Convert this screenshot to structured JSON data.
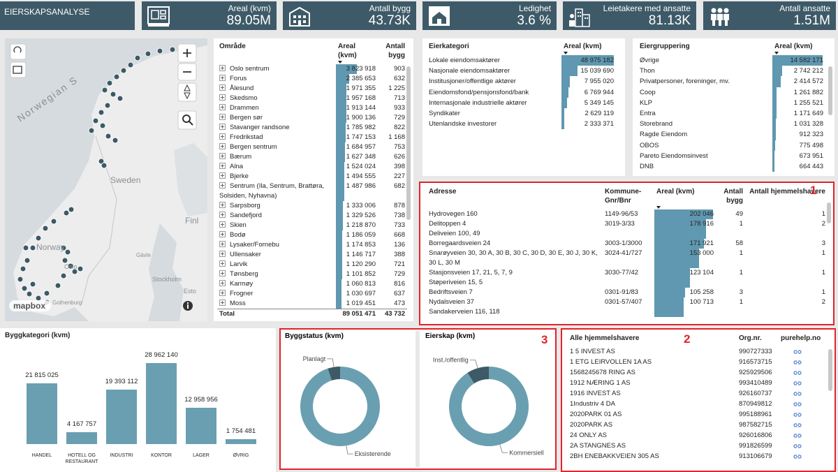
{
  "header": {
    "title": "EIERSKAPSANALYSE",
    "kpis": [
      {
        "label": "Areal (kvm)",
        "value": "89.05M"
      },
      {
        "label": "Antall bygg",
        "value": "43.73K"
      },
      {
        "label": "Ledighet",
        "value": "3.6 %"
      },
      {
        "label": "Leietakere med ansatte",
        "value": "81.13K"
      },
      {
        "label": "Antall ansatte",
        "value": "1.51M"
      }
    ]
  },
  "map": {
    "labels": [
      "Norwegian S",
      "Sweden",
      "Finl",
      "Norway",
      "Oslo",
      "Gävle",
      "Stockholm",
      "Esto",
      "Gothenburg"
    ],
    "attribution": "mapbox"
  },
  "region_table": {
    "headers": [
      "Område",
      "Areal (kvm)",
      "Antall bygg"
    ],
    "rows": [
      [
        "Oslo sentrum",
        "3 823 918",
        "903"
      ],
      [
        "Forus",
        "2 385 653",
        "632"
      ],
      [
        "Ålesund",
        "1 971 355",
        "1 225"
      ],
      [
        "Skedsmo",
        "1 957 168",
        "713"
      ],
      [
        "Drammen",
        "1 913 144",
        "933"
      ],
      [
        "Bergen sør",
        "1 900 136",
        "729"
      ],
      [
        "Stavanger randsone",
        "1 785 982",
        "822"
      ],
      [
        "Fredrikstad",
        "1 747 153",
        "1 168"
      ],
      [
        "Bergen sentrum",
        "1 684 957",
        "753"
      ],
      [
        "Bærum",
        "1 627 348",
        "626"
      ],
      [
        "Alna",
        "1 524 024",
        "398"
      ],
      [
        "Bjerke",
        "1 494 555",
        "227"
      ],
      [
        "Sentrum (Ila, Sentrum, Brattøra, Solsiden, Nyhavna)",
        "1 487 986",
        "682"
      ],
      [
        "Sarpsborg",
        "1 333 006",
        "878"
      ],
      [
        "Sandefjord",
        "1 329 526",
        "738"
      ],
      [
        "Skien",
        "1 218 870",
        "733"
      ],
      [
        "Bodø",
        "1 186 059",
        "668"
      ],
      [
        "Lysaker/Fornebu",
        "1 174 853",
        "136"
      ],
      [
        "Ullensaker",
        "1 146 717",
        "388"
      ],
      [
        "Larvik",
        "1 120 290",
        "721"
      ],
      [
        "Tønsberg",
        "1 101 852",
        "729"
      ],
      [
        "Karmøy",
        "1 060 813",
        "816"
      ],
      [
        "Frogner",
        "1 030 697",
        "637"
      ],
      [
        "Moss",
        "1 019 451",
        "473"
      ]
    ],
    "total": [
      "Total",
      "89 051 471",
      "43 732"
    ]
  },
  "owner_category": {
    "headers": [
      "Eierkategori",
      "Areal (kvm)"
    ],
    "rows": [
      [
        "Lokale eiendomsaktører",
        "48 975 182"
      ],
      [
        "Nasjonale eiendomsaktører",
        "15 039 690"
      ],
      [
        "Institusjoner/offentlige aktører",
        "7 955 020"
      ],
      [
        "Eiendomsfond/pensjonsfond/bank",
        "6 769 944"
      ],
      [
        "Internasjonale industrielle aktører",
        "5 349 145"
      ],
      [
        "Syndikater",
        "2 629 119"
      ],
      [
        "Utenlandske investorer",
        "2 333 371"
      ]
    ]
  },
  "owner_group": {
    "headers": [
      "Eiergruppering",
      "Areal (kvm)"
    ],
    "rows": [
      [
        "Øvrige",
        "14 582 171"
      ],
      [
        "Thon",
        "2 742 212"
      ],
      [
        "Privatpersoner, foreninger, mv.",
        "2 414 572"
      ],
      [
        "Coop",
        "1 261 882"
      ],
      [
        "KLP",
        "1 255 521"
      ],
      [
        "Entra",
        "1 171 649"
      ],
      [
        "Storebrand",
        "1 031 328"
      ],
      [
        "Ragde Eiendom",
        "912 323"
      ],
      [
        "OBOS",
        "775 498"
      ],
      [
        "Pareto Eiendomsinvest",
        "673 951"
      ],
      [
        "DNB",
        "664 443"
      ]
    ]
  },
  "address_table": {
    "badge": "1",
    "headers": [
      "Adresse",
      "Kommune-Gnr/Bnr",
      "Areal (kvm)",
      "Antall bygg",
      "Antall hjemmelshavere"
    ],
    "rows": [
      [
        "Hydrovegen 160",
        "1149-96/53",
        "202 046",
        "49",
        "1"
      ],
      [
        "Delitoppen 4\nDeliveien 100, 49",
        "3019-3/33",
        "178 916",
        "1",
        "2"
      ],
      [
        "Borregaardsveien 24",
        "3003-1/3000",
        "171 921",
        "58",
        "3"
      ],
      [
        "Snarøyveien 30, 30 A, 30 B, 30 C, 30 D, 30 E, 30 J, 30 K, 30 L, 30 M",
        "3024-41/727",
        "153 000",
        "1",
        "1"
      ],
      [
        "Stasjonsveien 17, 21, 5, 7, 9\nStøperiveien 15, 5",
        "3030-77/42",
        "123 104",
        "1",
        "1"
      ],
      [
        "Bedriftsveien 7",
        "0301-91/83",
        "105 258",
        "3",
        "1"
      ],
      [
        "Nydalsveien 37\nSandakerveien 116, 118",
        "0301-57/407",
        "100 713",
        "1",
        "2"
      ]
    ]
  },
  "owners_table": {
    "badge": "2",
    "headers": [
      "Alle hjemmelshavere",
      "Org.nr.",
      "purehelp.no"
    ],
    "rows": [
      [
        "1 5 INVEST AS",
        "990727333"
      ],
      [
        "1 ETG LEIRVOLLEN 1A AS",
        "916573715"
      ],
      [
        "1568245678 RING AS",
        "925929506"
      ],
      [
        "1912 NÆRING 1 AS",
        "993410489"
      ],
      [
        "1916 INVEST AS",
        "926160737"
      ],
      [
        "1Industriv 4 DA",
        "870949812"
      ],
      [
        "2020PARK 01 AS",
        "995188961"
      ],
      [
        "2020PARK AS",
        "987582715"
      ],
      [
        "24 ONLY AS",
        "926016806"
      ],
      [
        "2A STANGNES AS",
        "991826599"
      ],
      [
        "2BH ENEBAKKVEIEN 305 AS",
        "913106679"
      ]
    ]
  },
  "donut_panel_badge": "3",
  "chart_data": [
    {
      "type": "bar",
      "title": "Byggkategori (kvm)",
      "categories": [
        "HANDEL",
        "HOTELL OG RESTAURANT",
        "INDUSTRI",
        "KONTOR",
        "LAGER",
        "ØVRIG"
      ],
      "values": [
        21815025,
        4167757,
        19393112,
        28962140,
        12958956,
        1754481
      ],
      "value_labels": [
        "21 815 025",
        "4 167 757",
        "19 393 112",
        "28 962 140",
        "12 958 956",
        "1 754 481"
      ],
      "color": "#6a9fb1"
    },
    {
      "type": "donut",
      "title": "Byggstatus (kvm)",
      "categories": [
        "Eksisterende",
        "Planlagt"
      ],
      "values": [
        95,
        5
      ],
      "colors": [
        "#6a9fb1",
        "#3d5a66"
      ]
    },
    {
      "type": "donut",
      "title": "Eierskap (kvm)",
      "categories": [
        "Kommersiell",
        "Inst./offentlig"
      ],
      "values": [
        91,
        9
      ],
      "colors": [
        "#6a9fb1",
        "#3d5a66"
      ]
    }
  ]
}
